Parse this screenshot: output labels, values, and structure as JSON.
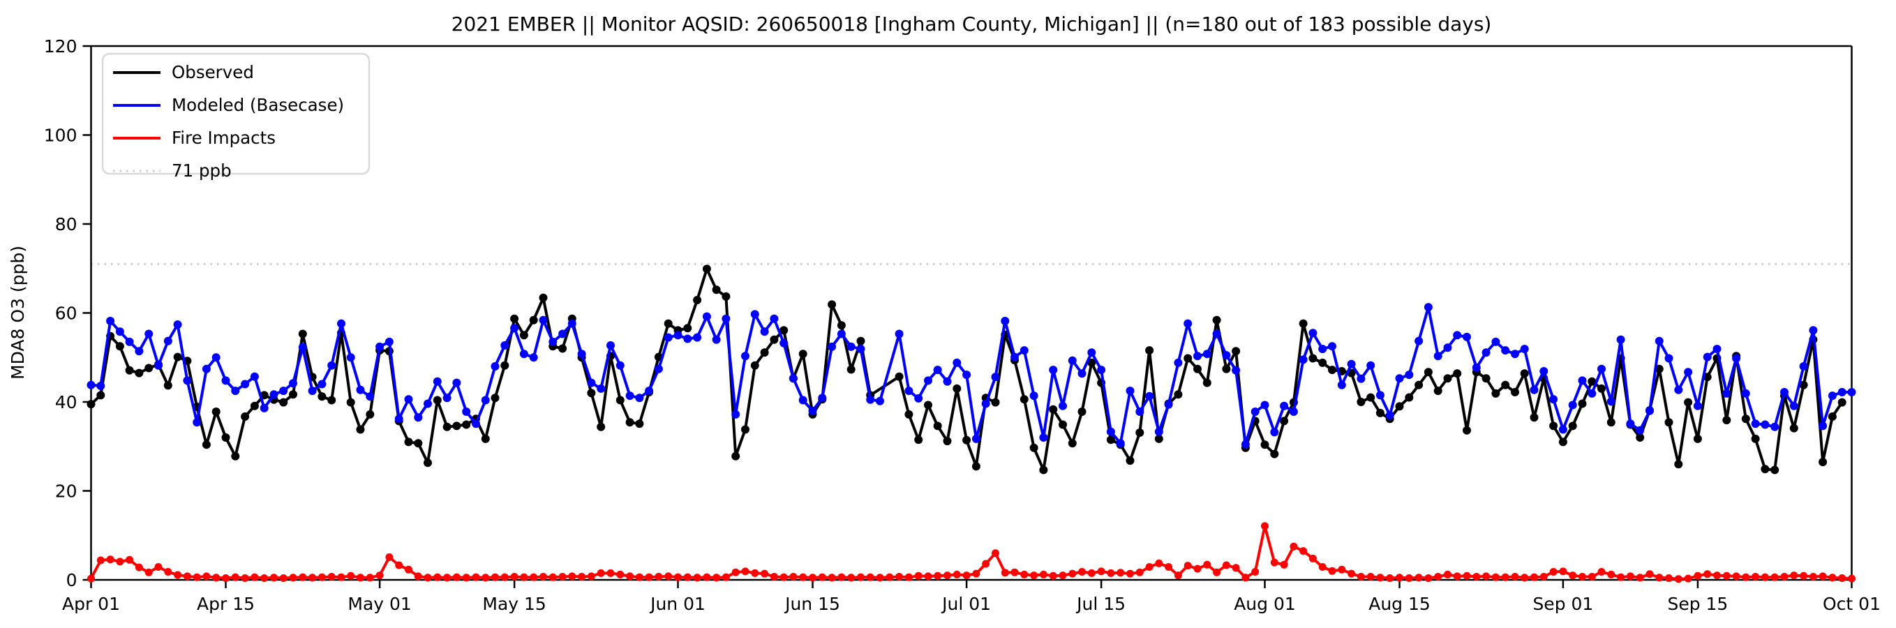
{
  "title": "2021 EMBER || Monitor AQSID: 260650018 [Ingham County, Michigan] || (n=180 out of 183 possible days)",
  "y_axis": {
    "label": "MDA8 O3 (ppb)",
    "ticks": [
      0,
      20,
      40,
      60,
      80,
      100,
      120
    ]
  },
  "x_axis": {
    "total_days": 183,
    "ticks": [
      {
        "label": "Apr 01",
        "day": 0
      },
      {
        "label": "Apr 15",
        "day": 14
      },
      {
        "label": "May 01",
        "day": 30
      },
      {
        "label": "May 15",
        "day": 44
      },
      {
        "label": "Jun 01",
        "day": 61
      },
      {
        "label": "Jun 15",
        "day": 75
      },
      {
        "label": "Jul 01",
        "day": 91
      },
      {
        "label": "Jul 15",
        "day": 105
      },
      {
        "label": "Aug 01",
        "day": 122
      },
      {
        "label": "Aug 15",
        "day": 136
      },
      {
        "label": "Sep 01",
        "day": 153
      },
      {
        "label": "Sep 15",
        "day": 167
      },
      {
        "label": "Oct 01",
        "day": 183
      }
    ]
  },
  "legend": [
    {
      "label": "Observed",
      "color": "#000000",
      "style": "solid"
    },
    {
      "label": "Modeled (Basecase)",
      "color": "#0000ff",
      "style": "solid"
    },
    {
      "label": "Fire Impacts",
      "color": "#ff0000",
      "style": "solid"
    },
    {
      "label": "71 ppb",
      "color": "#cccccc",
      "style": "dotted"
    }
  ],
  "chart_data": {
    "type": "line",
    "title": "2021 EMBER || Monitor AQSID: 260650018 [Ingham County, Michigan] || (n=180 out of 183 possible days)",
    "xlabel": "",
    "ylabel": "MDA8 O3 (ppb)",
    "ylim": [
      0,
      120
    ],
    "x_unit": "days since Apr 01 2021, daily values through Oct 01",
    "grid": false,
    "legend_position": "upper left",
    "threshold": {
      "value": 71,
      "label": "71 ppb",
      "color": "#cccccc",
      "style": "dotted"
    },
    "series": [
      {
        "name": "Observed",
        "color": "#000000",
        "values": [
          39.5,
          41.5,
          54.8,
          52.5,
          47.1,
          46.5,
          47.6,
          48.4,
          43.7,
          50.1,
          49.2,
          38.9,
          30.4,
          37.8,
          32,
          27.8,
          36.7,
          39.1,
          41.5,
          40.5,
          39.9,
          41.7,
          55.3,
          45.6,
          41.2,
          40.4,
          55.5,
          39.9,
          33.8,
          37.2,
          51.6,
          51.4,
          35.7,
          31,
          30.7,
          26.3,
          40.4,
          34.4,
          34.6,
          34.9,
          36.2,
          31.7,
          40.9,
          48.2,
          58.7,
          55,
          58.4,
          63.4,
          52.5,
          52,
          58.7,
          50,
          42,
          34.4,
          50.3,
          40.4,
          35.4,
          35.1,
          42.2,
          50.1,
          57.6,
          56.1,
          56.6,
          62.9,
          69.9,
          65.2,
          63.7,
          27.8,
          33.8,
          48.2,
          51.1,
          54,
          56.1,
          45.3,
          50.8,
          37.2,
          40.6,
          61.9,
          57.2,
          47.3,
          53.7,
          41.5,
          null,
          null,
          45.7,
          37.2,
          31.5,
          39.3,
          34.6,
          31.2,
          43,
          31.4,
          25.5,
          40.9,
          39.9,
          55.1,
          49.4,
          40.6,
          29.7,
          24.7,
          38.3,
          34.9,
          30.7,
          37.8,
          48.8,
          44.3,
          31.5,
          30.4,
          26.8,
          33.1,
          51.6,
          31.7,
          39.6,
          41.7,
          49.8,
          47.4,
          44.3,
          58.4,
          47.4,
          51.4,
          29.7,
          35.7,
          30.4,
          28.3,
          35.7,
          39.9,
          57.6,
          49.8,
          48.8,
          47.2,
          46.9,
          46.5,
          40,
          41,
          37.5,
          36.2,
          39,
          41,
          43.8,
          46.7,
          42.5,
          45.3,
          46.4,
          33.6,
          46.7,
          45.3,
          41.9,
          43.8,
          42.2,
          46.4,
          36.5,
          45.3,
          34.6,
          31,
          34.6,
          39.6,
          44.6,
          43,
          35.4,
          49.8,
          34.9,
          32,
          38.1,
          47.4,
          35.4,
          26,
          39.9,
          31.7,
          45.6,
          49.8,
          35.9,
          50.3,
          36.2,
          31.7,
          24.9,
          24.7,
          41.4,
          34.1,
          43.8,
          54,
          26.5,
          36.7,
          39.9,
          null
        ]
      },
      {
        "name": "Modeled (Basecase)",
        "color": "#0000ff",
        "values": [
          43.8,
          43.6,
          58.2,
          55.8,
          53.5,
          51.4,
          55.3,
          48.2,
          53.7,
          57.4,
          44.8,
          35.4,
          47.4,
          50,
          44.8,
          42.5,
          44,
          45.7,
          38.6,
          41.7,
          42.5,
          44.2,
          52.3,
          42.5,
          44,
          48.2,
          57.6,
          50,
          42.7,
          41.2,
          52.4,
          53.5,
          36.2,
          40.6,
          36.5,
          39.6,
          44.6,
          40.9,
          44.3,
          37.8,
          35.1,
          40.4,
          48,
          52.7,
          56.6,
          50.8,
          50,
          58.4,
          53.5,
          55.3,
          57.6,
          50.8,
          44.3,
          43,
          52.7,
          48.2,
          41.4,
          40.9,
          42.5,
          47.4,
          54.5,
          55,
          54.2,
          54.5,
          59.2,
          54,
          58.7,
          37.2,
          50.3,
          59.7,
          55.8,
          58.7,
          53.2,
          45.3,
          40.4,
          38,
          40.9,
          52.4,
          55.3,
          52.4,
          51.9,
          40.5,
          40.2,
          null,
          55.3,
          42.5,
          40.8,
          44.8,
          47.2,
          44.6,
          48.8,
          46.1,
          31.7,
          39.6,
          45.6,
          58.2,
          50.1,
          51.6,
          41.4,
          32,
          47.2,
          39.1,
          49.3,
          46.4,
          51.1,
          47.2,
          33.3,
          30.7,
          42.5,
          37.8,
          41.3,
          33.3,
          39.4,
          48.8,
          57.6,
          50.3,
          50.8,
          55.3,
          50.5,
          47.1,
          30.5,
          37.8,
          39.3,
          33.2,
          39.1,
          37.8,
          49.5,
          55.5,
          51.9,
          52.5,
          43.8,
          48.5,
          45.2,
          48.2,
          41.5,
          37,
          45.3,
          46.1,
          53.7,
          61.3,
          50.3,
          52.2,
          55,
          54.6,
          47.7,
          51.1,
          53.5,
          51.6,
          50.8,
          51.9,
          42.7,
          46.9,
          40.6,
          33.8,
          39.3,
          44.8,
          41.9,
          47.4,
          40.1,
          54,
          35.1,
          33.6,
          38,
          53.7,
          49.8,
          42.7,
          46.7,
          39.1,
          50.1,
          51.9,
          41.9,
          49.8,
          41.9,
          35.1,
          34.9,
          34.4,
          42.2,
          39.1,
          48,
          56.1,
          34.6,
          41.4,
          42.2,
          42.2
        ]
      },
      {
        "name": "Fire Impacts",
        "color": "#ff0000",
        "values": [
          0.3,
          4.4,
          4.6,
          4.1,
          4.5,
          2.8,
          1.7,
          2.9,
          1.8,
          1.1,
          0.8,
          0.6,
          0.8,
          0.5,
          0.4,
          0.6,
          0.4,
          0.6,
          0.4,
          0.5,
          0.4,
          0.5,
          0.6,
          0.5,
          0.6,
          0.7,
          0.6,
          0.9,
          0.5,
          0.5,
          1,
          5.1,
          3.3,
          2.3,
          0.8,
          0.5,
          0.6,
          0.5,
          0.6,
          0.5,
          0.6,
          0.5,
          0.6,
          0.6,
          0.7,
          0.6,
          0.6,
          0.7,
          0.6,
          0.7,
          0.8,
          0.7,
          0.8,
          1.5,
          1.5,
          1.2,
          0.8,
          0.6,
          0.6,
          0.7,
          0.8,
          0.6,
          0.6,
          0.5,
          0.6,
          0.5,
          0.6,
          1.7,
          1.9,
          1.5,
          1.4,
          0.7,
          0.6,
          0.7,
          0.6,
          0.5,
          0.6,
          0.5,
          0.6,
          0.5,
          0.6,
          0.6,
          0.5,
          0.6,
          0.7,
          0.6,
          0.9,
          0.8,
          0.9,
          1,
          1.2,
          1,
          1.4,
          3.6,
          6,
          1.6,
          1.7,
          1.2,
          1,
          1.2,
          0.9,
          1,
          1.4,
          1.8,
          1.5,
          1.9,
          1.5,
          1.6,
          1.4,
          1.7,
          2.9,
          3.7,
          2.9,
          1,
          3.2,
          2.5,
          3.4,
          1.7,
          3.3,
          2.7,
          0.5,
          1.8,
          12.1,
          3.9,
          3.4,
          7.5,
          6.5,
          4.8,
          2.9,
          2,
          2.3,
          1.4,
          0.7,
          0.7,
          0.5,
          0.4,
          0.5,
          0.4,
          0.5,
          0.4,
          0.7,
          1.2,
          0.8,
          0.9,
          0.7,
          0.8,
          0.6,
          0.6,
          0.7,
          0.5,
          0.6,
          0.7,
          1.8,
          1.9,
          1,
          0.7,
          0.7,
          1.8,
          1.2,
          0.6,
          0.8,
          0.5,
          1.3,
          0.5,
          0.4,
          0.2,
          0.3,
          0.9,
          1.3,
          1,
          0.9,
          0.8,
          0.6,
          0.7,
          0.6,
          0.6,
          0.7,
          1,
          0.9,
          0.7,
          0.8,
          0.5,
          0.4,
          0.3
        ]
      }
    ]
  }
}
